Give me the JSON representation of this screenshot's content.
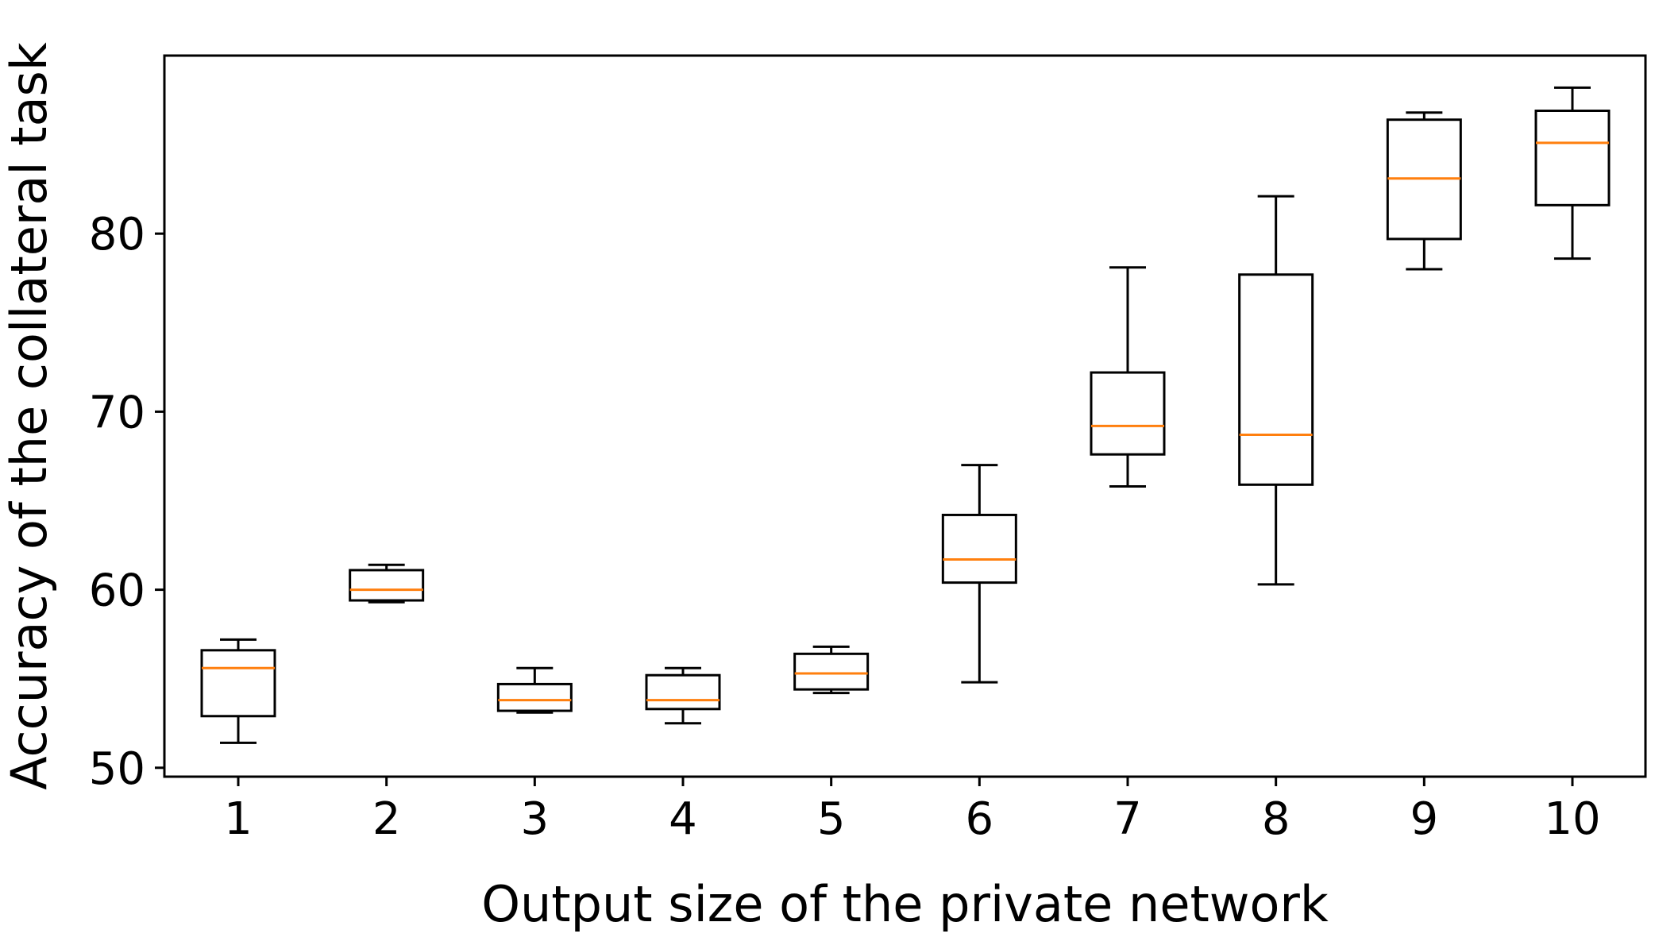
{
  "chart_data": {
    "type": "box",
    "xlabel": "Output size of the private network",
    "ylabel": "Accuracy of the collateral task",
    "categories": [
      "1",
      "2",
      "3",
      "4",
      "5",
      "6",
      "7",
      "8",
      "9",
      "10"
    ],
    "yticks": [
      50,
      60,
      70,
      80
    ],
    "ylim": [
      49.5,
      90
    ],
    "grid": false,
    "colors": {
      "box": "#000000",
      "median": "#ff7f0e"
    },
    "boxes": [
      {
        "x": "1",
        "whisker_low": 51.4,
        "q1": 52.9,
        "median": 55.6,
        "q3": 56.6,
        "whisker_high": 57.2
      },
      {
        "x": "2",
        "whisker_low": 59.3,
        "q1": 59.4,
        "median": 60.0,
        "q3": 61.1,
        "whisker_high": 61.4
      },
      {
        "x": "3",
        "whisker_low": 53.1,
        "q1": 53.2,
        "median": 53.8,
        "q3": 54.7,
        "whisker_high": 55.6
      },
      {
        "x": "4",
        "whisker_low": 52.5,
        "q1": 53.3,
        "median": 53.8,
        "q3": 55.2,
        "whisker_high": 55.6
      },
      {
        "x": "5",
        "whisker_low": 54.2,
        "q1": 54.4,
        "median": 55.3,
        "q3": 56.4,
        "whisker_high": 56.8
      },
      {
        "x": "6",
        "whisker_low": 54.8,
        "q1": 60.4,
        "median": 61.7,
        "q3": 64.2,
        "whisker_high": 67.0
      },
      {
        "x": "7",
        "whisker_low": 65.8,
        "q1": 67.6,
        "median": 69.2,
        "q3": 72.2,
        "whisker_high": 78.1
      },
      {
        "x": "8",
        "whisker_low": 60.3,
        "q1": 65.9,
        "median": 68.7,
        "q3": 77.7,
        "whisker_high": 82.1
      },
      {
        "x": "9",
        "whisker_low": 78.0,
        "q1": 79.7,
        "median": 83.1,
        "q3": 86.4,
        "whisker_high": 86.8
      },
      {
        "x": "10",
        "whisker_low": 78.6,
        "q1": 81.6,
        "median": 85.1,
        "q3": 86.9,
        "whisker_high": 88.2
      }
    ]
  }
}
